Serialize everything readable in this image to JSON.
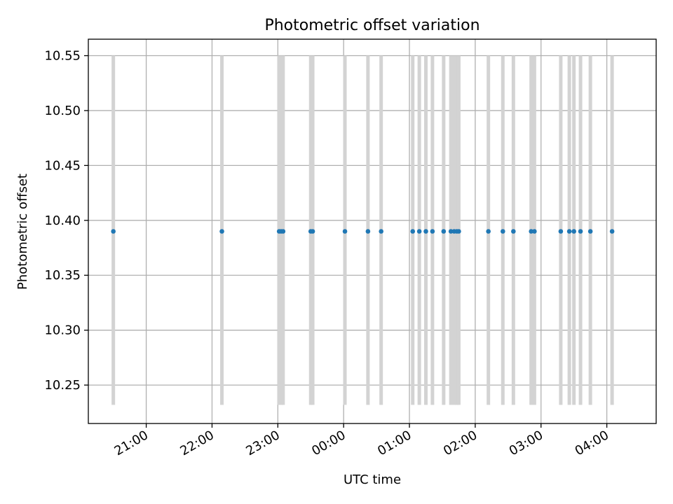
{
  "chart_data": {
    "type": "scatter",
    "title": "Photometric offset variation",
    "xlabel": "UTC time",
    "ylabel": "Photometric offset",
    "x_axis_kind": "time",
    "x_tick_labels": [
      "21:00",
      "22:00",
      "23:00",
      "00:00",
      "01:00",
      "02:00",
      "03:00",
      "04:00"
    ],
    "x_tick_hours": [
      21,
      22,
      23,
      24,
      25,
      26,
      27,
      28
    ],
    "x_range_hours": [
      20.12,
      28.75
    ],
    "ylim": [
      10.215,
      10.565
    ],
    "y_ticks": [
      "10.25",
      "10.30",
      "10.35",
      "10.40",
      "10.45",
      "10.50",
      "10.55"
    ],
    "y_tick_values": [
      10.25,
      10.3,
      10.35,
      10.4,
      10.45,
      10.5,
      10.55
    ],
    "grid": true,
    "series": [
      {
        "x_hours": [
          20.5,
          22.15,
          23.02,
          23.05,
          23.08,
          23.5,
          23.53,
          24.02,
          24.37,
          24.57,
          25.05,
          25.15,
          25.25,
          25.35,
          25.52,
          25.63,
          25.68,
          25.72,
          25.75,
          26.2,
          26.42,
          26.58,
          26.85,
          26.9,
          27.3,
          27.43,
          27.5,
          27.6,
          27.75,
          28.08
        ],
        "x": [
          "20:30",
          "22:09",
          "23:01",
          "23:03",
          "23:05",
          "23:30",
          "23:32",
          "00:01",
          "00:22",
          "00:34",
          "01:03",
          "01:09",
          "01:15",
          "01:21",
          "01:31",
          "01:38",
          "01:41",
          "01:43",
          "01:45",
          "02:12",
          "02:25",
          "02:35",
          "02:51",
          "02:54",
          "03:18",
          "03:26",
          "03:30",
          "03:36",
          "03:45",
          "04:05"
        ],
        "y": [
          10.39,
          10.39,
          10.39,
          10.39,
          10.39,
          10.39,
          10.39,
          10.39,
          10.39,
          10.39,
          10.39,
          10.39,
          10.39,
          10.39,
          10.39,
          10.39,
          10.39,
          10.39,
          10.39,
          10.39,
          10.39,
          10.39,
          10.39,
          10.39,
          10.39,
          10.39,
          10.39,
          10.39,
          10.39,
          10.39
        ],
        "error_low": 10.232,
        "error_high": 10.55,
        "color": "#1f77b4",
        "error_color": "#d3d3d3"
      }
    ]
  },
  "colors": {
    "grid": "#b0b0b0",
    "axes": "#000000",
    "background": "#ffffff"
  }
}
